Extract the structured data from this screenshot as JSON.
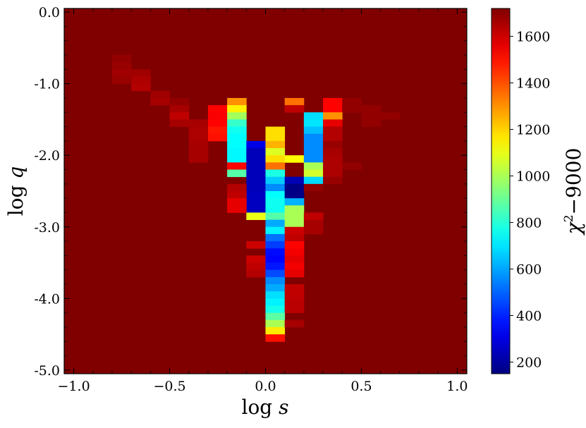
{
  "chart_data": {
    "type": "heatmap",
    "colormap": "jet",
    "background_value": 1720,
    "xlabel_main": "log",
    "xlabel_var": "s",
    "ylabel_main": "log",
    "ylabel_var": "q",
    "colorbar_label_chi": "χ",
    "colorbar_label_exp": "2",
    "colorbar_label_rest": "−9000",
    "xlim": [
      -1.05,
      1.05
    ],
    "ylim": [
      -5.05,
      0.05
    ],
    "x_ticks": [
      -1.0,
      -0.5,
      0.0,
      0.5,
      1.0
    ],
    "x_tick_labels": [
      "−1.0",
      "−0.5",
      "0.0",
      "0.5",
      "1.0"
    ],
    "y_ticks": [
      0,
      -1,
      -2,
      -3,
      -4,
      -5
    ],
    "y_tick_labels": [
      "0.0",
      "-1.0",
      "-2.0",
      "-3.0",
      "-4.0",
      "-5.0"
    ],
    "colorbar_range": [
      150,
      1720
    ],
    "colorbar_ticks": [
      200,
      400,
      600,
      800,
      1000,
      1200,
      1400,
      1600
    ],
    "colorbar_tick_labels": [
      "200",
      "400",
      "600",
      "800",
      "1000",
      "1200",
      "1400",
      "1600"
    ],
    "cell_size": {
      "dx": 0.1,
      "dy": 0.1
    },
    "cells": [
      [
        -0.75,
        -0.65,
        1690
      ],
      [
        -0.75,
        -0.75,
        1680
      ],
      [
        -0.75,
        -0.85,
        1670
      ],
      [
        -0.75,
        -0.95,
        1680
      ],
      [
        -0.65,
        -0.85,
        1670
      ],
      [
        -0.65,
        -0.95,
        1650
      ],
      [
        -0.65,
        -1.05,
        1640
      ],
      [
        -0.55,
        -1.15,
        1670
      ],
      [
        -0.55,
        -1.25,
        1660
      ],
      [
        -0.45,
        -1.25,
        1690
      ],
      [
        -0.45,
        -1.35,
        1660
      ],
      [
        -0.45,
        -1.45,
        1620
      ],
      [
        -0.45,
        -1.55,
        1660
      ],
      [
        -0.35,
        -1.55,
        1660
      ],
      [
        -0.35,
        -1.65,
        1650
      ],
      [
        -0.35,
        -1.75,
        1650
      ],
      [
        -0.35,
        -1.85,
        1660
      ],
      [
        -0.35,
        -1.95,
        1660
      ],
      [
        -0.35,
        -2.05,
        1660
      ],
      [
        -0.25,
        -1.35,
        1520
      ],
      [
        -0.25,
        -1.45,
        1530
      ],
      [
        -0.25,
        -1.55,
        1520
      ],
      [
        -0.25,
        -1.65,
        1490
      ],
      [
        -0.25,
        -1.75,
        1500
      ],
      [
        -0.15,
        -1.25,
        1300
      ],
      [
        -0.15,
        -1.35,
        1150
      ],
      [
        -0.15,
        -1.45,
        990
      ],
      [
        -0.15,
        -1.55,
        820
      ],
      [
        -0.15,
        -1.65,
        760
      ],
      [
        -0.15,
        -1.75,
        740
      ],
      [
        -0.15,
        -1.85,
        740
      ],
      [
        -0.15,
        -1.95,
        730
      ],
      [
        -0.15,
        -2.05,
        730
      ],
      [
        -0.15,
        -2.15,
        1520
      ],
      [
        -0.15,
        -2.25,
        870
      ],
      [
        -0.05,
        -1.85,
        310
      ],
      [
        -0.05,
        -1.95,
        240
      ],
      [
        -0.05,
        -2.05,
        240
      ],
      [
        -0.05,
        -2.15,
        240
      ],
      [
        -0.05,
        -2.25,
        240
      ],
      [
        -0.05,
        -2.35,
        240
      ],
      [
        -0.05,
        -2.45,
        240
      ],
      [
        -0.05,
        -2.55,
        250
      ],
      [
        -0.05,
        -2.65,
        250
      ],
      [
        -0.05,
        -2.75,
        250
      ],
      [
        -0.05,
        -2.85,
        1100
      ],
      [
        -0.15,
        -2.45,
        1640
      ],
      [
        -0.15,
        -2.55,
        1620
      ],
      [
        -0.15,
        -2.65,
        1560
      ],
      [
        -0.15,
        -2.75,
        1560
      ],
      [
        -0.05,
        -3.25,
        1600
      ],
      [
        -0.05,
        -3.45,
        1600
      ],
      [
        -0.05,
        -3.55,
        1620
      ],
      [
        -0.05,
        -3.65,
        1640
      ],
      [
        0.05,
        -1.65,
        1180
      ],
      [
        0.05,
        -1.75,
        1180
      ],
      [
        0.05,
        -1.85,
        1250
      ],
      [
        0.05,
        -1.95,
        1080
      ],
      [
        0.05,
        -2.05,
        1180
      ],
      [
        0.05,
        -2.15,
        1350
      ],
      [
        0.05,
        -2.25,
        780
      ],
      [
        0.05,
        -2.35,
        660
      ],
      [
        0.05,
        -2.45,
        560
      ],
      [
        0.05,
        -2.55,
        740
      ],
      [
        0.05,
        -2.65,
        760
      ],
      [
        0.05,
        -2.75,
        760
      ],
      [
        0.05,
        -2.85,
        870
      ],
      [
        0.05,
        -2.95,
        610
      ],
      [
        0.05,
        -3.05,
        720
      ],
      [
        0.05,
        -3.15,
        520
      ],
      [
        0.05,
        -3.25,
        440
      ],
      [
        0.05,
        -3.35,
        360
      ],
      [
        0.05,
        -3.45,
        350
      ],
      [
        0.05,
        -3.55,
        380
      ],
      [
        0.05,
        -3.65,
        460
      ],
      [
        0.05,
        -3.75,
        560
      ],
      [
        0.05,
        -3.85,
        610
      ],
      [
        0.05,
        -3.95,
        690
      ],
      [
        0.05,
        -4.05,
        720
      ],
      [
        0.05,
        -4.15,
        770
      ],
      [
        0.05,
        -4.25,
        880
      ],
      [
        0.05,
        -4.35,
        1000
      ],
      [
        0.05,
        -4.45,
        1160
      ],
      [
        0.05,
        -4.55,
        1500
      ],
      [
        0.15,
        -1.25,
        1350
      ],
      [
        0.15,
        -1.35,
        1620
      ],
      [
        0.15,
        -2.05,
        1130
      ],
      [
        0.15,
        -2.35,
        230
      ],
      [
        0.15,
        -2.45,
        160
      ],
      [
        0.15,
        -2.55,
        160
      ],
      [
        0.15,
        -2.65,
        620
      ],
      [
        0.15,
        -2.75,
        1000
      ],
      [
        0.15,
        -2.85,
        1000
      ],
      [
        0.15,
        -2.95,
        1000
      ],
      [
        0.15,
        -3.05,
        1600
      ],
      [
        0.15,
        -3.15,
        1620
      ],
      [
        0.15,
        -3.25,
        1520
      ],
      [
        0.15,
        -3.35,
        1540
      ],
      [
        0.15,
        -3.45,
        1560
      ],
      [
        0.15,
        -3.55,
        1540
      ],
      [
        0.15,
        -3.65,
        1560
      ],
      [
        0.15,
        -3.85,
        1620
      ],
      [
        0.15,
        -3.95,
        1620
      ],
      [
        0.15,
        -4.05,
        1630
      ],
      [
        0.15,
        -4.15,
        1630
      ],
      [
        0.15,
        -4.35,
        1660
      ],
      [
        0.25,
        -1.45,
        690
      ],
      [
        0.25,
        -1.55,
        700
      ],
      [
        0.25,
        -1.65,
        640
      ],
      [
        0.25,
        -1.75,
        560
      ],
      [
        0.25,
        -1.85,
        560
      ],
      [
        0.25,
        -1.95,
        560
      ],
      [
        0.25,
        -2.05,
        560
      ],
      [
        0.25,
        -2.15,
        1000
      ],
      [
        0.25,
        -2.25,
        1060
      ],
      [
        0.25,
        -2.35,
        680
      ],
      [
        0.25,
        -2.45,
        1690
      ],
      [
        0.25,
        -2.85,
        1620
      ],
      [
        0.25,
        -2.95,
        1660
      ],
      [
        0.25,
        -3.05,
        1660
      ],
      [
        0.35,
        -1.25,
        1520
      ],
      [
        0.35,
        -1.35,
        1520
      ],
      [
        0.35,
        -1.45,
        1300
      ],
      [
        0.35,
        -1.55,
        1560
      ],
      [
        0.35,
        -1.65,
        1640
      ],
      [
        0.35,
        -1.75,
        1640
      ],
      [
        0.35,
        -1.85,
        1680
      ],
      [
        0.35,
        -1.95,
        1660
      ],
      [
        0.35,
        -2.05,
        1650
      ],
      [
        0.35,
        -2.15,
        1650
      ],
      [
        0.35,
        -2.25,
        1650
      ],
      [
        0.35,
        -2.35,
        1680
      ],
      [
        0.45,
        -1.25,
        1690
      ],
      [
        0.45,
        -1.35,
        1690
      ],
      [
        0.45,
        -2.15,
        1690
      ],
      [
        0.55,
        -1.35,
        1690
      ],
      [
        0.55,
        -1.45,
        1690
      ],
      [
        0.55,
        -1.55,
        1690
      ],
      [
        0.65,
        -1.45,
        1690
      ]
    ]
  }
}
